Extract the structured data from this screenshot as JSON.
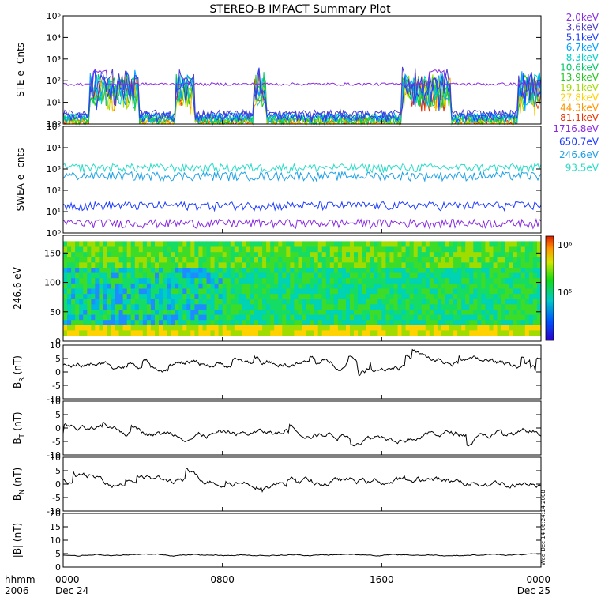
{
  "title": "STEREO-B IMPACT Summary Plot",
  "time_axis": {
    "row1_label": "hhmm",
    "row2_label": "2006",
    "ticks": [
      {
        "time": "0000",
        "date": "Dec 24"
      },
      {
        "time": "0800",
        "date": ""
      },
      {
        "time": "1600",
        "date": ""
      },
      {
        "time": "0000",
        "date": "Dec 25"
      }
    ],
    "range_hours": [
      0,
      24
    ]
  },
  "side_stamp": "Wed Dec 14 06:24:14 2008",
  "colors": {
    "frame": "#000000",
    "ste_floor": "#e83000",
    "ste_top": "#8a2be2"
  },
  "chart_data": [
    {
      "type": "line",
      "panel": "ste",
      "ylabel": "STE e- Cnts",
      "yscale": "log",
      "ylim_exp": [
        0,
        5
      ],
      "ytick_labels": [
        "10⁰",
        "10¹",
        "10²",
        "10³",
        "10⁴",
        "10⁵"
      ],
      "series": [
        {
          "name": "2.0keV",
          "color": "#8a2be2",
          "level": 70
        },
        {
          "name": "3.6keV",
          "color": "#4b3cc8",
          "level": 3
        },
        {
          "name": "5.1keV",
          "color": "#1e3cff",
          "level": 2.5
        },
        {
          "name": "6.7keV",
          "color": "#00a0ff",
          "level": 2.2
        },
        {
          "name": "8.3keV",
          "color": "#00d2c8",
          "level": 2
        },
        {
          "name": "10.6keV",
          "color": "#00c864",
          "level": 1.8
        },
        {
          "name": "13.9keV",
          "color": "#22c81e",
          "level": 1.6
        },
        {
          "name": "19.1keV",
          "color": "#a0dc00",
          "level": 1.5
        },
        {
          "name": "27.8keV",
          "color": "#ffd200",
          "level": 1.4
        },
        {
          "name": "44.3keV",
          "color": "#ff9600",
          "level": 1.3
        },
        {
          "name": "81.1keV",
          "color": "#e83000",
          "level": 1.2
        }
      ]
    },
    {
      "type": "line",
      "panel": "swea",
      "ylabel": "SWEA e- cnts",
      "yscale": "log",
      "ylim_exp": [
        0,
        5
      ],
      "ytick_labels": [
        "10⁰",
        "10¹",
        "10²",
        "10³",
        "10⁴",
        "10⁵"
      ],
      "series": [
        {
          "name": "1716.8eV",
          "color": "#8a2be2",
          "level": 3
        },
        {
          "name": "650.7eV",
          "color": "#1e3cff",
          "level": 20
        },
        {
          "name": "246.6eV",
          "color": "#1ea0e6",
          "level": 500
        },
        {
          "name": "93.5eV",
          "color": "#28dcc8",
          "level": 1200
        }
      ]
    },
    {
      "type": "heatmap",
      "panel": "pad",
      "ylabel": "246.6 eV",
      "ylim": [
        0,
        180
      ],
      "yticks": [
        0,
        50,
        100,
        150
      ],
      "colorbar_labels": [
        "10⁵",
        "10⁶"
      ]
    },
    {
      "type": "line",
      "panel": "br",
      "ylabel": "B_R (nT)",
      "ylim": [
        -10,
        10
      ],
      "yticks": [
        10,
        5,
        0,
        -5,
        -10
      ],
      "color": "#000000",
      "baseline": 3
    },
    {
      "type": "line",
      "panel": "bt",
      "ylabel": "B_T (nT)",
      "ylim": [
        -10,
        10
      ],
      "yticks": [
        10,
        5,
        0,
        -5,
        -10
      ],
      "color": "#000000",
      "baseline": -2
    },
    {
      "type": "line",
      "panel": "bn",
      "ylabel": "B_N (nT)",
      "ylim": [
        -10,
        10
      ],
      "yticks": [
        10,
        5,
        0,
        -5,
        -10
      ],
      "color": "#000000",
      "baseline": 1
    },
    {
      "type": "line",
      "panel": "bmag",
      "ylabel": "|B| (nT)",
      "ylim": [
        0,
        20
      ],
      "yticks": [
        20,
        15,
        10,
        5,
        0
      ],
      "color": "#000000",
      "baseline": 4.5
    }
  ]
}
